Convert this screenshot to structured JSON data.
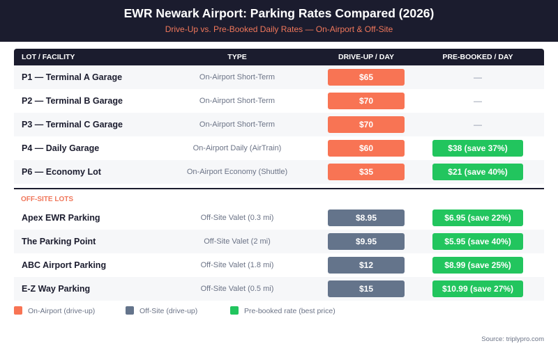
{
  "header": {
    "title": "EWR Newark Airport: Parking Rates Compared (2026)",
    "subtitle": "Drive-Up vs. Pre-Booked Daily Rates — On-Airport & Off-Site"
  },
  "colors": {
    "on_airport": "#f87454",
    "off_site": "#64748b",
    "pre_booked": "#22c55e",
    "header_bg": "#1b1c2e",
    "accent_text": "#f0775b"
  },
  "chart_data": {
    "type": "table",
    "title": "EWR Newark Airport: Parking Rates Compared (2026)",
    "subtitle": "Drive-Up vs. Pre-Booked Daily Rates — On-Airport & Off-Site",
    "columns": [
      "LOT / FACILITY",
      "TYPE",
      "DRIVE-UP / DAY",
      "PRE-BOOKED / DAY"
    ],
    "sections": [
      {
        "label": "",
        "category": "on_airport",
        "rows": [
          {
            "name": "P1 — Terminal A Garage",
            "type": "On-Airport Short-Term",
            "drive_up": "$65",
            "drive_up_value": 65,
            "pre_booked": "—",
            "pre_booked_value": null,
            "savings_pct": null
          },
          {
            "name": "P2 — Terminal B Garage",
            "type": "On-Airport Short-Term",
            "drive_up": "$70",
            "drive_up_value": 70,
            "pre_booked": "—",
            "pre_booked_value": null,
            "savings_pct": null
          },
          {
            "name": "P3 — Terminal C Garage",
            "type": "On-Airport Short-Term",
            "drive_up": "$70",
            "drive_up_value": 70,
            "pre_booked": "—",
            "pre_booked_value": null,
            "savings_pct": null
          },
          {
            "name": "P4 — Daily Garage",
            "type": "On-Airport Daily (AirTrain)",
            "drive_up": "$60",
            "drive_up_value": 60,
            "pre_booked": "$38 (save 37%)",
            "pre_booked_value": 38,
            "savings_pct": 37
          },
          {
            "name": "P6 — Economy Lot",
            "type": "On-Airport Economy (Shuttle)",
            "drive_up": "$35",
            "drive_up_value": 35,
            "pre_booked": "$21 (save 40%)",
            "pre_booked_value": 21,
            "savings_pct": 40
          }
        ]
      },
      {
        "label": "OFF-SITE LOTS",
        "category": "off_site",
        "rows": [
          {
            "name": "Apex EWR Parking",
            "type": "Off-Site Valet (0.3 mi)",
            "drive_up": "$8.95",
            "drive_up_value": 8.95,
            "pre_booked": "$6.95 (save 22%)",
            "pre_booked_value": 6.95,
            "savings_pct": 22
          },
          {
            "name": "The Parking Point",
            "type": "Off-Site Valet (2 mi)",
            "drive_up": "$9.95",
            "drive_up_value": 9.95,
            "pre_booked": "$5.95 (save 40%)",
            "pre_booked_value": 5.95,
            "savings_pct": 40
          },
          {
            "name": "ABC Airport Parking",
            "type": "Off-Site Valet (1.8 mi)",
            "drive_up": "$12",
            "drive_up_value": 12,
            "pre_booked": "$8.99 (save 25%)",
            "pre_booked_value": 8.99,
            "savings_pct": 25
          },
          {
            "name": "E-Z Way Parking",
            "type": "Off-Site Valet (0.5 mi)",
            "drive_up": "$15",
            "drive_up_value": 15,
            "pre_booked": "$10.99 (save 27%)",
            "pre_booked_value": 10.99,
            "savings_pct": 27
          }
        ]
      }
    ],
    "legend": [
      {
        "label": "On-Airport (drive-up)",
        "color": "#f87454"
      },
      {
        "label": "Off-Site (drive-up)",
        "color": "#64748b"
      },
      {
        "label": "Pre-booked rate (best price)",
        "color": "#22c55e"
      }
    ],
    "legend_position": "bottom-left",
    "source": "Source: triplypro.com"
  },
  "footer": {
    "source": "Source: triplypro.com"
  }
}
